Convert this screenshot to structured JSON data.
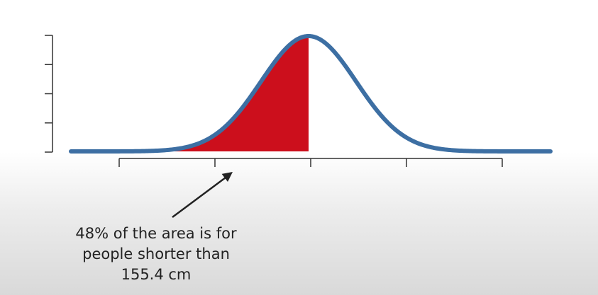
{
  "chart_data": {
    "type": "area",
    "curve": "normal",
    "x_ticks": 5,
    "y_ticks": 5,
    "shaded_region": {
      "from": "left-tail",
      "to": "mean",
      "percent_of_area": 48
    },
    "annotation": {
      "lines": [
        "48% of the area is for",
        "people shorter than",
        "155.4 cm"
      ]
    },
    "colors": {
      "curve": "#3d6fa3",
      "shade": "#cc0f1c",
      "axis": "#333333",
      "arrow": "#222222"
    }
  }
}
